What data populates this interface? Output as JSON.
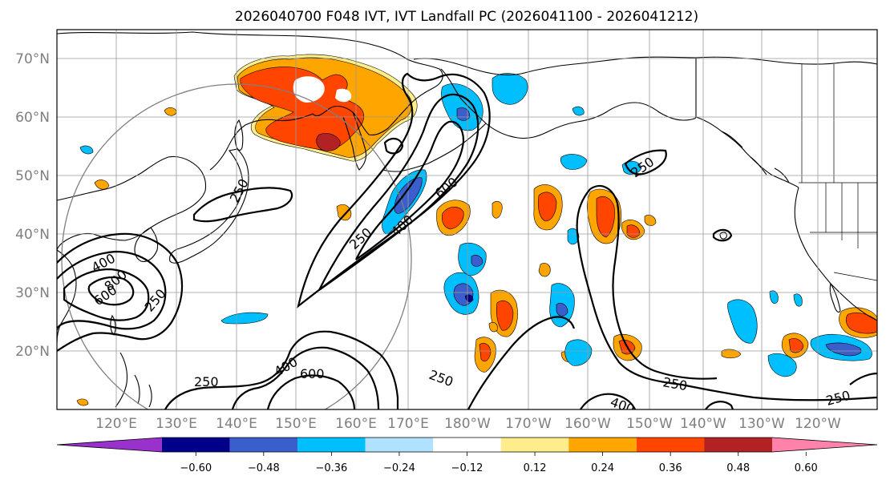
{
  "title": "2026040700 F048 IVT, IVT Landfall PC (2026041100 - 2026041212)",
  "lat_labels": [
    "70°N",
    "60°N",
    "50°N",
    "40°N",
    "30°N",
    "20°N"
  ],
  "lon_labels": [
    "120°E",
    "130°E",
    "140°E",
    "150°E",
    "160°E",
    "170°E",
    "180°W",
    "170°W",
    "160°W",
    "150°W",
    "140°W",
    "130°W",
    "120°W"
  ],
  "colorbar": {
    "ticks": [
      "−0.60",
      "−0.48",
      "−0.36",
      "−0.24",
      "−0.12",
      "0.12",
      "0.24",
      "0.36",
      "0.48",
      "0.60"
    ],
    "colors": [
      "#9932cc",
      "#00008b",
      "#3a5fcd",
      "#00bfff",
      "#b0e2ff",
      "#ffffff",
      "#ffec8b",
      "#ffa500",
      "#ff4500",
      "#b22222",
      "#ff82ab"
    ]
  },
  "contour_labels": [
    "250",
    "400",
    "600",
    "250",
    "400",
    "600",
    "800",
    "250",
    "250",
    "400",
    "600",
    "250",
    "250",
    "400",
    "250",
    "250"
  ],
  "colors": {
    "pos_light": "#ffec8b",
    "pos_mid": "#ffa500",
    "pos_strong": "#ff4500",
    "pos_max": "#b22222",
    "neg_light": "#b0e2ff",
    "neg_mid": "#00bfff",
    "neg_strong": "#3a5fcd",
    "neg_max": "#00008b"
  }
}
